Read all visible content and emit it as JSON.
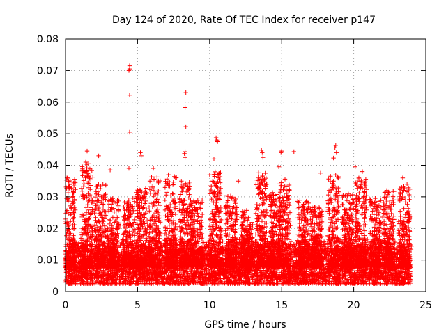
{
  "chart_data": {
    "type": "scatter",
    "title": "Day 124 of 2020, Rate Of TEC Index for receiver p147",
    "xlabel": "GPS time / hours",
    "ylabel": "ROTI / TECUs",
    "xlim": [
      0,
      25
    ],
    "ylim": [
      0,
      0.08
    ],
    "x_ticks": [
      0,
      5,
      10,
      15,
      20,
      25
    ],
    "x_tick_labels": [
      "0",
      "5",
      "10",
      "15",
      "20",
      "25"
    ],
    "y_ticks": [
      0,
      0.01,
      0.02,
      0.03,
      0.04,
      0.05,
      0.06,
      0.07,
      0.08
    ],
    "y_tick_labels": [
      "0",
      "0.01",
      "0.02",
      "0.03",
      "0.04",
      "0.05",
      "0.06",
      "0.07",
      "0.08"
    ],
    "grid": true,
    "marker": "+",
    "marker_color": "#ff0000",
    "series": [
      {
        "name": "ROTI",
        "description_note": "dense cloud of samples over 0-24 h, baseline ~0.005-0.02 TECU/s with spikes",
        "baseline_range": [
          0.003,
          0.015
        ],
        "outliers": [
          {
            "x": 4.45,
            "y": 0.0715
          },
          {
            "x": 4.45,
            "y": 0.0705
          },
          {
            "x": 4.4,
            "y": 0.07
          },
          {
            "x": 4.45,
            "y": 0.0622
          },
          {
            "x": 4.45,
            "y": 0.0505
          },
          {
            "x": 4.4,
            "y": 0.039
          },
          {
            "x": 8.35,
            "y": 0.063
          },
          {
            "x": 8.3,
            "y": 0.0583
          },
          {
            "x": 8.35,
            "y": 0.0522
          },
          {
            "x": 8.3,
            "y": 0.0443
          },
          {
            "x": 8.25,
            "y": 0.0437
          },
          {
            "x": 8.3,
            "y": 0.0425
          },
          {
            "x": 10.45,
            "y": 0.0487
          },
          {
            "x": 10.5,
            "y": 0.048
          },
          {
            "x": 10.55,
            "y": 0.0475
          },
          {
            "x": 18.75,
            "y": 0.0463
          },
          {
            "x": 18.7,
            "y": 0.0455
          },
          {
            "x": 18.8,
            "y": 0.044
          },
          {
            "x": 18.6,
            "y": 0.0423
          },
          {
            "x": 15.0,
            "y": 0.0445
          },
          {
            "x": 14.95,
            "y": 0.044
          },
          {
            "x": 13.6,
            "y": 0.0448
          },
          {
            "x": 13.65,
            "y": 0.044
          },
          {
            "x": 15.85,
            "y": 0.0443
          },
          {
            "x": 1.5,
            "y": 0.0445
          },
          {
            "x": 5.2,
            "y": 0.044
          },
          {
            "x": 5.25,
            "y": 0.043
          },
          {
            "x": 2.3,
            "y": 0.043
          },
          {
            "x": 1.4,
            "y": 0.041
          },
          {
            "x": 1.6,
            "y": 0.0405
          },
          {
            "x": 10.3,
            "y": 0.042
          },
          {
            "x": 13.7,
            "y": 0.0425
          },
          {
            "x": 20.1,
            "y": 0.0395
          },
          {
            "x": 20.6,
            "y": 0.038
          },
          {
            "x": 17.7,
            "y": 0.0375
          },
          {
            "x": 18.6,
            "y": 0.035
          },
          {
            "x": 14.8,
            "y": 0.0395
          },
          {
            "x": 6.1,
            "y": 0.039
          },
          {
            "x": 3.1,
            "y": 0.0385
          },
          {
            "x": 23.4,
            "y": 0.036
          },
          {
            "x": 0.1,
            "y": 0.036
          },
          {
            "x": 12.0,
            "y": 0.035
          }
        ],
        "activity_bands": [
          {
            "center": 0.3,
            "peak": 0.036
          },
          {
            "center": 1.5,
            "peak": 0.041
          },
          {
            "center": 2.4,
            "peak": 0.034
          },
          {
            "center": 3.3,
            "peak": 0.03
          },
          {
            "center": 4.4,
            "peak": 0.03
          },
          {
            "center": 5.3,
            "peak": 0.033
          },
          {
            "center": 6.2,
            "peak": 0.037
          },
          {
            "center": 7.3,
            "peak": 0.037
          },
          {
            "center": 8.3,
            "peak": 0.035
          },
          {
            "center": 9.1,
            "peak": 0.029
          },
          {
            "center": 10.4,
            "peak": 0.038
          },
          {
            "center": 11.5,
            "peak": 0.031
          },
          {
            "center": 12.6,
            "peak": 0.026
          },
          {
            "center": 13.6,
            "peak": 0.038
          },
          {
            "center": 14.5,
            "peak": 0.032
          },
          {
            "center": 15.2,
            "peak": 0.036
          },
          {
            "center": 16.5,
            "peak": 0.029
          },
          {
            "center": 17.4,
            "peak": 0.027
          },
          {
            "center": 18.6,
            "peak": 0.037
          },
          {
            "center": 19.6,
            "peak": 0.031
          },
          {
            "center": 20.5,
            "peak": 0.036
          },
          {
            "center": 21.5,
            "peak": 0.03
          },
          {
            "center": 22.4,
            "peak": 0.032
          },
          {
            "center": 23.5,
            "peak": 0.034
          }
        ]
      }
    ]
  }
}
